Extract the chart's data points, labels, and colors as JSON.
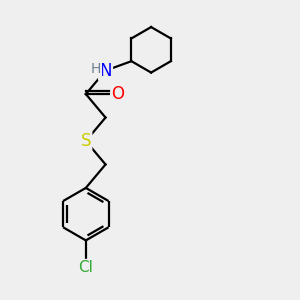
{
  "background_color": "#efefef",
  "atom_colors": {
    "C": "#000000",
    "H": "#708090",
    "N": "#0000ff",
    "O": "#ff0000",
    "S": "#cccc00",
    "Cl": "#33aa33"
  },
  "bond_color": "#000000",
  "bond_width": 1.6,
  "font_size_atom": 11,
  "font_size_h": 10,
  "xlim": [
    0,
    10
  ],
  "ylim": [
    0,
    10
  ],
  "figsize": [
    3.0,
    3.0
  ],
  "dpi": 100
}
